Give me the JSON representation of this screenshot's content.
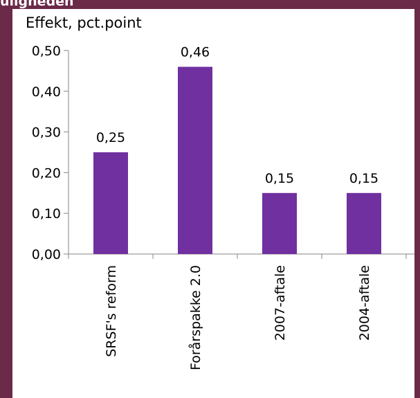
{
  "header": {
    "title_fragment": "ulighedeh"
  },
  "chart_data": {
    "type": "bar",
    "ylabel": "Effekt, pct.point",
    "categories": [
      "SRSF's reform",
      "Forårspakke 2.0",
      "2007-aftale",
      "2004-aftale"
    ],
    "values": [
      0.25,
      0.46,
      0.15,
      0.15
    ],
    "value_labels": [
      "0,25",
      "0,46",
      "0,15",
      "0,15"
    ],
    "ylim": [
      0,
      0.5
    ],
    "yticks": [
      0,
      0.1,
      0.2,
      0.3,
      0.4,
      0.5
    ],
    "ytick_labels": [
      "0,00",
      "0,10",
      "0,20",
      "0,30",
      "0,40",
      "0,50"
    ],
    "grid": false,
    "legend": "none",
    "bar_color": "#7030a0",
    "frame_color": "#6b2a48"
  }
}
